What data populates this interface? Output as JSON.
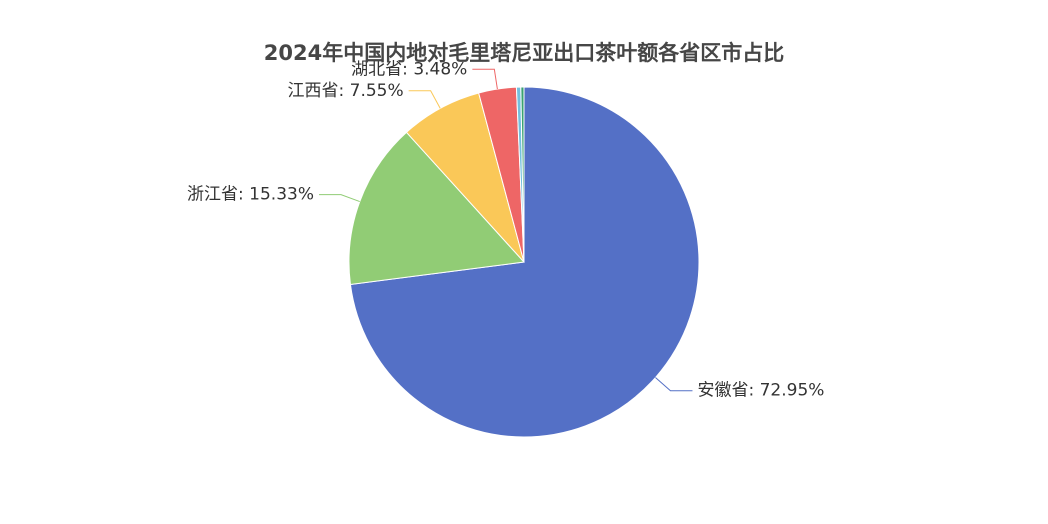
{
  "chart_data": {
    "type": "pie",
    "title": "2024年中国内地对毛里塔尼亚出口茶叶额各省区市占比",
    "categories": [
      "安徽省",
      "浙江省",
      "江西省",
      "湖北省",
      null,
      null
    ],
    "values": [
      72.95,
      15.33,
      7.55,
      3.48,
      0.4,
      0.29
    ],
    "value_labels": [
      "72.95%",
      "15.33%",
      "7.55%",
      "3.48%",
      null,
      null
    ],
    "label_separator": ": ",
    "colors": [
      "#5470c6",
      "#91cc75",
      "#fac858",
      "#ee6666",
      "#73c0de",
      "#3ba272"
    ]
  }
}
